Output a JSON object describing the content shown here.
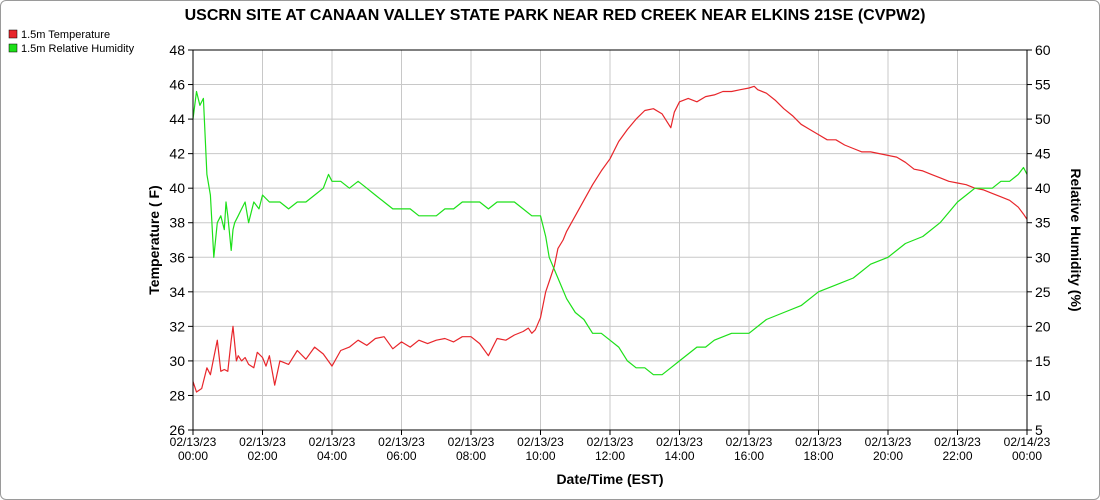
{
  "chart_data": {
    "type": "line",
    "title": "USCRN SITE AT CANAAN VALLEY STATE PARK NEAR RED CREEK NEAR ELKINS 21SE (CVPW2)",
    "xlabel": "Date/Time (EST)",
    "ylabel": "Temperature ( F)",
    "y2label": "Relative Humidity (%)",
    "xlim": [
      0,
      24
    ],
    "ylim": [
      26,
      48
    ],
    "y2lim": [
      5,
      60
    ],
    "grid": true,
    "legend_position": "top-left",
    "x_ticks": [
      {
        "value": 0,
        "line1": "02/13/23",
        "line2": "00:00"
      },
      {
        "value": 2,
        "line1": "02/13/23",
        "line2": "02:00"
      },
      {
        "value": 4,
        "line1": "02/13/23",
        "line2": "04:00"
      },
      {
        "value": 6,
        "line1": "02/13/23",
        "line2": "06:00"
      },
      {
        "value": 8,
        "line1": "02/13/23",
        "line2": "08:00"
      },
      {
        "value": 10,
        "line1": "02/13/23",
        "line2": "10:00"
      },
      {
        "value": 12,
        "line1": "02/13/23",
        "line2": "12:00"
      },
      {
        "value": 14,
        "line1": "02/13/23",
        "line2": "14:00"
      },
      {
        "value": 16,
        "line1": "02/13/23",
        "line2": "16:00"
      },
      {
        "value": 18,
        "line1": "02/13/23",
        "line2": "18:00"
      },
      {
        "value": 20,
        "line1": "02/13/23",
        "line2": "20:00"
      },
      {
        "value": 22,
        "line1": "02/13/23",
        "line2": "22:00"
      },
      {
        "value": 24,
        "line1": "02/14/23",
        "line2": "00:00"
      }
    ],
    "y_ticks": [
      26,
      28,
      30,
      32,
      34,
      36,
      38,
      40,
      42,
      44,
      46,
      48
    ],
    "y2_ticks": [
      5,
      10,
      15,
      20,
      25,
      30,
      35,
      40,
      45,
      50,
      55,
      60
    ],
    "series": [
      {
        "name": "1.5m Temperature",
        "color": "#e8262b",
        "axis": "left",
        "x": [
          0,
          0.1,
          0.25,
          0.4,
          0.5,
          0.6,
          0.7,
          0.8,
          0.9,
          1.0,
          1.1,
          1.15,
          1.25,
          1.3,
          1.4,
          1.5,
          1.6,
          1.75,
          1.85,
          2.0,
          2.1,
          2.2,
          2.35,
          2.5,
          2.75,
          3.0,
          3.25,
          3.5,
          3.75,
          4.0,
          4.25,
          4.5,
          4.75,
          5.0,
          5.25,
          5.5,
          5.75,
          6.0,
          6.25,
          6.5,
          6.75,
          7.0,
          7.25,
          7.5,
          7.75,
          8.0,
          8.25,
          8.5,
          8.75,
          9.0,
          9.25,
          9.5,
          9.65,
          9.75,
          9.85,
          10.0,
          10.15,
          10.25,
          10.4,
          10.5,
          10.65,
          10.75,
          11.0,
          11.25,
          11.5,
          11.75,
          12.0,
          12.25,
          12.5,
          12.75,
          13.0,
          13.25,
          13.5,
          13.75,
          13.85,
          14.0,
          14.25,
          14.5,
          14.75,
          15.0,
          15.25,
          15.5,
          15.75,
          16.0,
          16.15,
          16.25,
          16.5,
          16.75,
          17.0,
          17.25,
          17.5,
          17.75,
          18.0,
          18.25,
          18.5,
          18.75,
          19.0,
          19.25,
          19.5,
          19.75,
          20.0,
          20.25,
          20.5,
          20.75,
          21.0,
          21.25,
          21.5,
          21.75,
          22.0,
          22.25,
          22.5,
          22.75,
          23.0,
          23.25,
          23.5,
          23.75,
          23.9,
          24.0
        ],
        "values": [
          28.8,
          28.2,
          28.4,
          29.6,
          29.2,
          30.2,
          31.2,
          29.4,
          29.5,
          29.4,
          31.2,
          32.0,
          30.0,
          30.3,
          30.0,
          30.2,
          29.8,
          29.6,
          30.5,
          30.2,
          29.7,
          30.3,
          28.6,
          30.0,
          29.8,
          30.6,
          30.1,
          30.8,
          30.4,
          29.7,
          30.6,
          30.8,
          31.2,
          30.9,
          31.3,
          31.4,
          30.7,
          31.1,
          30.8,
          31.2,
          31.0,
          31.2,
          31.3,
          31.1,
          31.4,
          31.4,
          31.0,
          30.3,
          31.3,
          31.2,
          31.5,
          31.7,
          31.9,
          31.6,
          31.8,
          32.5,
          34.0,
          34.6,
          35.5,
          36.5,
          37.0,
          37.5,
          38.4,
          39.3,
          40.2,
          41.0,
          41.7,
          42.7,
          43.4,
          44.0,
          44.5,
          44.6,
          44.3,
          43.5,
          44.4,
          45.0,
          45.2,
          45.0,
          45.3,
          45.4,
          45.6,
          45.6,
          45.7,
          45.8,
          45.9,
          45.7,
          45.5,
          45.1,
          44.6,
          44.2,
          43.7,
          43.4,
          43.1,
          42.8,
          42.8,
          42.5,
          42.3,
          42.1,
          42.1,
          42.0,
          41.9,
          41.8,
          41.5,
          41.1,
          41.0,
          40.8,
          40.6,
          40.4,
          40.3,
          40.2,
          40.0,
          39.9,
          39.7,
          39.5,
          39.3,
          38.9,
          38.5,
          38.2
        ]
      },
      {
        "name": "1.5m Relative Humidity",
        "color": "#1de019",
        "axis": "right",
        "x": [
          0,
          0.1,
          0.2,
          0.3,
          0.4,
          0.5,
          0.6,
          0.7,
          0.8,
          0.9,
          0.95,
          1.0,
          1.1,
          1.15,
          1.2,
          1.3,
          1.4,
          1.5,
          1.6,
          1.75,
          1.9,
          2.0,
          2.2,
          2.5,
          2.75,
          3.0,
          3.25,
          3.5,
          3.75,
          3.9,
          4.0,
          4.25,
          4.5,
          4.75,
          5.0,
          5.25,
          5.5,
          5.75,
          6.0,
          6.25,
          6.5,
          6.75,
          7.0,
          7.25,
          7.5,
          7.75,
          8.0,
          8.25,
          8.5,
          8.75,
          9.0,
          9.25,
          9.5,
          9.75,
          10.0,
          10.15,
          10.25,
          10.5,
          10.75,
          11.0,
          11.25,
          11.5,
          11.75,
          12.0,
          12.25,
          12.5,
          12.75,
          13.0,
          13.25,
          13.5,
          13.75,
          14.0,
          14.25,
          14.5,
          14.75,
          15.0,
          15.5,
          16.0,
          16.5,
          17.0,
          17.5,
          18.0,
          18.5,
          19.0,
          19.5,
          20.0,
          20.5,
          21.0,
          21.5,
          22.0,
          22.25,
          22.5,
          22.75,
          23.0,
          23.25,
          23.5,
          23.75,
          23.9,
          24.0
        ],
        "values": [
          50,
          54,
          52,
          53,
          42,
          39,
          30,
          35,
          36,
          34,
          38,
          36,
          31,
          34,
          35,
          36,
          37,
          38,
          35,
          38,
          37,
          39,
          38,
          38,
          37,
          38,
          38,
          39,
          40,
          42,
          41,
          41,
          40,
          41,
          40,
          39,
          38,
          37,
          37,
          37,
          36,
          36,
          36,
          37,
          37,
          38,
          38,
          38,
          37,
          38,
          38,
          38,
          37,
          36,
          36,
          33,
          30,
          27,
          24,
          22,
          21,
          19,
          19,
          18,
          17,
          15,
          14,
          14,
          13,
          13,
          14,
          15,
          16,
          17,
          17,
          18,
          19,
          19,
          21,
          22,
          23,
          25,
          26,
          27,
          29,
          30,
          32,
          33,
          35,
          38,
          39,
          40,
          40,
          40,
          41,
          41,
          42,
          43,
          42
        ]
      }
    ]
  }
}
